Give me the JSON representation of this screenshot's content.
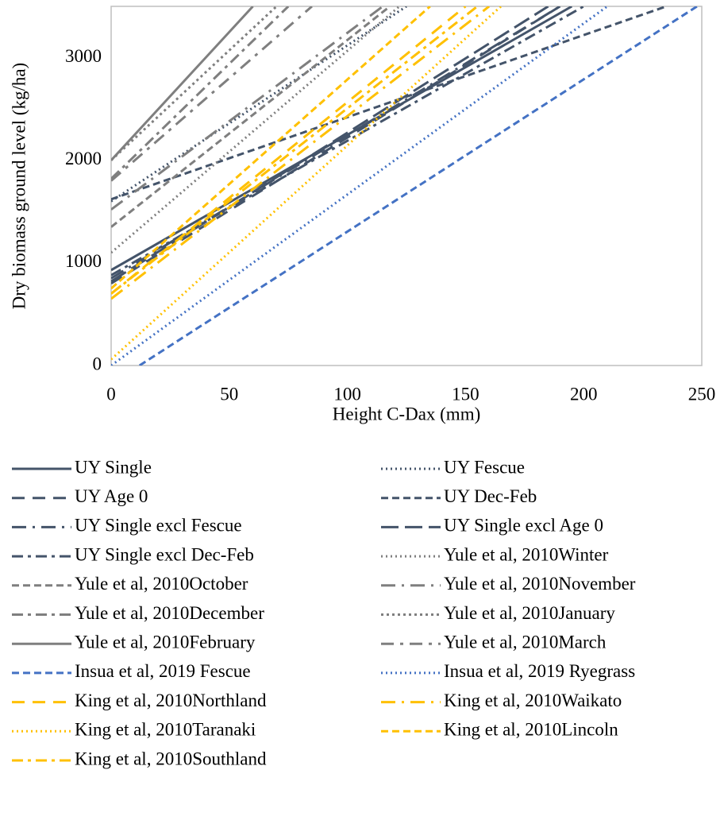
{
  "chart_data": {
    "type": "line",
    "x_label": "Height C-Dax (mm)",
    "y_label": "Dry biomass ground level (kg/ha)",
    "xlim": [
      0,
      250
    ],
    "ylim": [
      0,
      3500
    ],
    "xticks": [
      0,
      50,
      100,
      150,
      200,
      250
    ],
    "yticks": [
      0,
      1000,
      2000,
      3000
    ],
    "grid": false,
    "legend": "bottom",
    "series": [
      {
        "name": "UY Single",
        "color": "#44546a",
        "dash": "none",
        "x": [
          0,
          195
        ],
        "values": [
          930,
          3500
        ]
      },
      {
        "name": "UY Fescue",
        "color": "#44546a",
        "dash": "2,4",
        "x": [
          0,
          125
        ],
        "values": [
          1600,
          3500
        ]
      },
      {
        "name": "UY Age 0",
        "color": "#44546a",
        "dash": "16,10",
        "x": [
          0,
          190
        ],
        "values": [
          800,
          3500
        ]
      },
      {
        "name": "UY Dec-Feb",
        "color": "#44546a",
        "dash": "9,5",
        "x": [
          0,
          235
        ],
        "values": [
          1620,
          3500
        ]
      },
      {
        "name": "UY Single excl Fescue",
        "color": "#44546a",
        "dash": "18,8,3,8",
        "x": [
          0,
          190
        ],
        "values": [
          850,
          3500
        ]
      },
      {
        "name": "UY Single excl Age 0",
        "color": "#44546a",
        "dash": "22,8",
        "x": [
          0,
          185
        ],
        "values": [
          820,
          3500
        ]
      },
      {
        "name": "UY Single excl Dec-Feb",
        "color": "#44546a",
        "dash": "14,6,4,6",
        "x": [
          0,
          200
        ],
        "values": [
          880,
          3500
        ]
      },
      {
        "name": "Yule et al, 2010Winter",
        "color": "#7f7f7f",
        "dash": "2,4",
        "x": [
          0,
          122
        ],
        "values": [
          1100,
          3500
        ]
      },
      {
        "name": "Yule et al, 2010October",
        "color": "#7f7f7f",
        "dash": "9,5",
        "x": [
          0,
          118
        ],
        "values": [
          1350,
          3500
        ]
      },
      {
        "name": "Yule et al, 2010November",
        "color": "#7f7f7f",
        "dash": "18,8,3,8",
        "x": [
          0,
          115
        ],
        "values": [
          1520,
          3500
        ]
      },
      {
        "name": "Yule et al, 2010December",
        "color": "#7f7f7f",
        "dash": "14,6,4,6",
        "x": [
          0,
          75
        ],
        "values": [
          1820,
          3500
        ]
      },
      {
        "name": "Yule et al, 2010January",
        "color": "#7f7f7f",
        "dash": "3,4",
        "x": [
          0,
          70
        ],
        "values": [
          2000,
          3500
        ]
      },
      {
        "name": "Yule et al, 2010February",
        "color": "#7f7f7f",
        "dash": "none",
        "x": [
          0,
          60
        ],
        "values": [
          2000,
          3500
        ]
      },
      {
        "name": "Yule et al, 2010March",
        "color": "#7f7f7f",
        "dash": "16,8,4,8",
        "x": [
          0,
          85
        ],
        "values": [
          1800,
          3500
        ]
      },
      {
        "name": "Insua et al, 2019 Fescue",
        "color": "#4472c4",
        "dash": "9,5",
        "x": [
          12,
          248
        ],
        "values": [
          0,
          3500
        ]
      },
      {
        "name": "Insua et al, 2019 Ryegrass",
        "color": "#4472c4",
        "dash": "2,4",
        "x": [
          0,
          210
        ],
        "values": [
          0,
          3500
        ]
      },
      {
        "name": "King et al, 2010Northland",
        "color": "#ffc000",
        "dash": "16,10",
        "x": [
          0,
          150
        ],
        "values": [
          700,
          3500
        ]
      },
      {
        "name": "King et al, 2010Waikato",
        "color": "#ffc000",
        "dash": "18,8,3,8",
        "x": [
          0,
          160
        ],
        "values": [
          650,
          3500
        ]
      },
      {
        "name": "King et al, 2010Taranaki",
        "color": "#ffc000",
        "dash": "2,4",
        "x": [
          0,
          165
        ],
        "values": [
          60,
          3500
        ]
      },
      {
        "name": "King et al, 2010Lincoln",
        "color": "#ffc000",
        "dash": "9,5",
        "x": [
          0,
          135
        ],
        "values": [
          750,
          3500
        ]
      },
      {
        "name": "King et al, 2010Southland",
        "color": "#ffc000",
        "dash": "14,6,4,6",
        "x": [
          0,
          155
        ],
        "values": [
          700,
          3500
        ]
      }
    ]
  }
}
